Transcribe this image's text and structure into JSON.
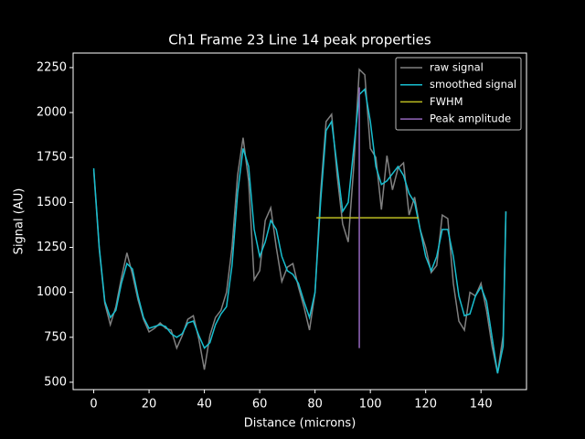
{
  "chart_data": {
    "type": "line",
    "title": "Ch1 Frame 23 Line 14 peak properties",
    "x_label": "Distance (microns)",
    "y_label": "Signal (AU)",
    "x": [
      0,
      2,
      4,
      6,
      8,
      10,
      12,
      14,
      16,
      18,
      20,
      22,
      24,
      26,
      28,
      30,
      32,
      34,
      36,
      38,
      40,
      42,
      44,
      46,
      48,
      50,
      52,
      54,
      56,
      58,
      60,
      62,
      64,
      66,
      68,
      70,
      72,
      74,
      76,
      78,
      80,
      82,
      84,
      86,
      88,
      90,
      92,
      94,
      96,
      98,
      100,
      102,
      104,
      106,
      108,
      110,
      112,
      114,
      116,
      118,
      120,
      122,
      124,
      126,
      128,
      130,
      132,
      134,
      136,
      138,
      140,
      142,
      144,
      146,
      148,
      149
    ],
    "series": [
      {
        "name": "raw signal",
        "color": "#808080",
        "values": [
          1680,
          1240,
          940,
          820,
          920,
          1080,
          1220,
          1100,
          960,
          850,
          780,
          800,
          830,
          800,
          790,
          690,
          760,
          850,
          870,
          740,
          570,
          760,
          860,
          900,
          1000,
          1250,
          1650,
          1860,
          1620,
          1070,
          1120,
          1400,
          1470,
          1250,
          1060,
          1140,
          1160,
          1030,
          920,
          790,
          1000,
          1550,
          1950,
          1990,
          1650,
          1380,
          1280,
          1700,
          2240,
          2210,
          1800,
          1750,
          1460,
          1760,
          1570,
          1690,
          1720,
          1430,
          1530,
          1350,
          1250,
          1110,
          1150,
          1430,
          1410,
          1050,
          840,
          790,
          1000,
          980,
          1050,
          900,
          700,
          550,
          760,
          1450
        ]
      },
      {
        "name": "smoothed signal",
        "color": "#17becf",
        "values": [
          1690,
          1250,
          950,
          860,
          900,
          1050,
          1160,
          1130,
          980,
          860,
          800,
          810,
          820,
          810,
          770,
          750,
          770,
          830,
          840,
          760,
          690,
          720,
          820,
          880,
          920,
          1150,
          1550,
          1800,
          1700,
          1350,
          1200,
          1280,
          1400,
          1350,
          1200,
          1120,
          1100,
          1050,
          950,
          860,
          1000,
          1500,
          1900,
          1950,
          1700,
          1450,
          1500,
          1800,
          2100,
          2130,
          1950,
          1700,
          1600,
          1620,
          1660,
          1700,
          1650,
          1550,
          1500,
          1350,
          1200,
          1120,
          1200,
          1350,
          1350,
          1200,
          980,
          870,
          880,
          980,
          1030,
          950,
          750,
          550,
          700,
          1450
        ]
      },
      {
        "name": "FWHM",
        "color": "#bcbd22",
        "x": [
          80.5,
          117.5
        ],
        "values": [
          1415,
          1415
        ]
      },
      {
        "name": "Peak amplitude",
        "color": "#9467bd",
        "x": [
          96,
          96
        ],
        "values": [
          690,
          2140
        ]
      }
    ],
    "xlim": [
      -7.45,
      156.45
    ],
    "ylim": [
      459,
      2331
    ],
    "xticks": [
      0,
      20,
      40,
      60,
      80,
      100,
      120,
      140
    ],
    "yticks": [
      500,
      750,
      1000,
      1250,
      1500,
      1750,
      2000,
      2250
    ],
    "legend": "upper right",
    "background": "#000000",
    "foreground": "#ffffff"
  }
}
